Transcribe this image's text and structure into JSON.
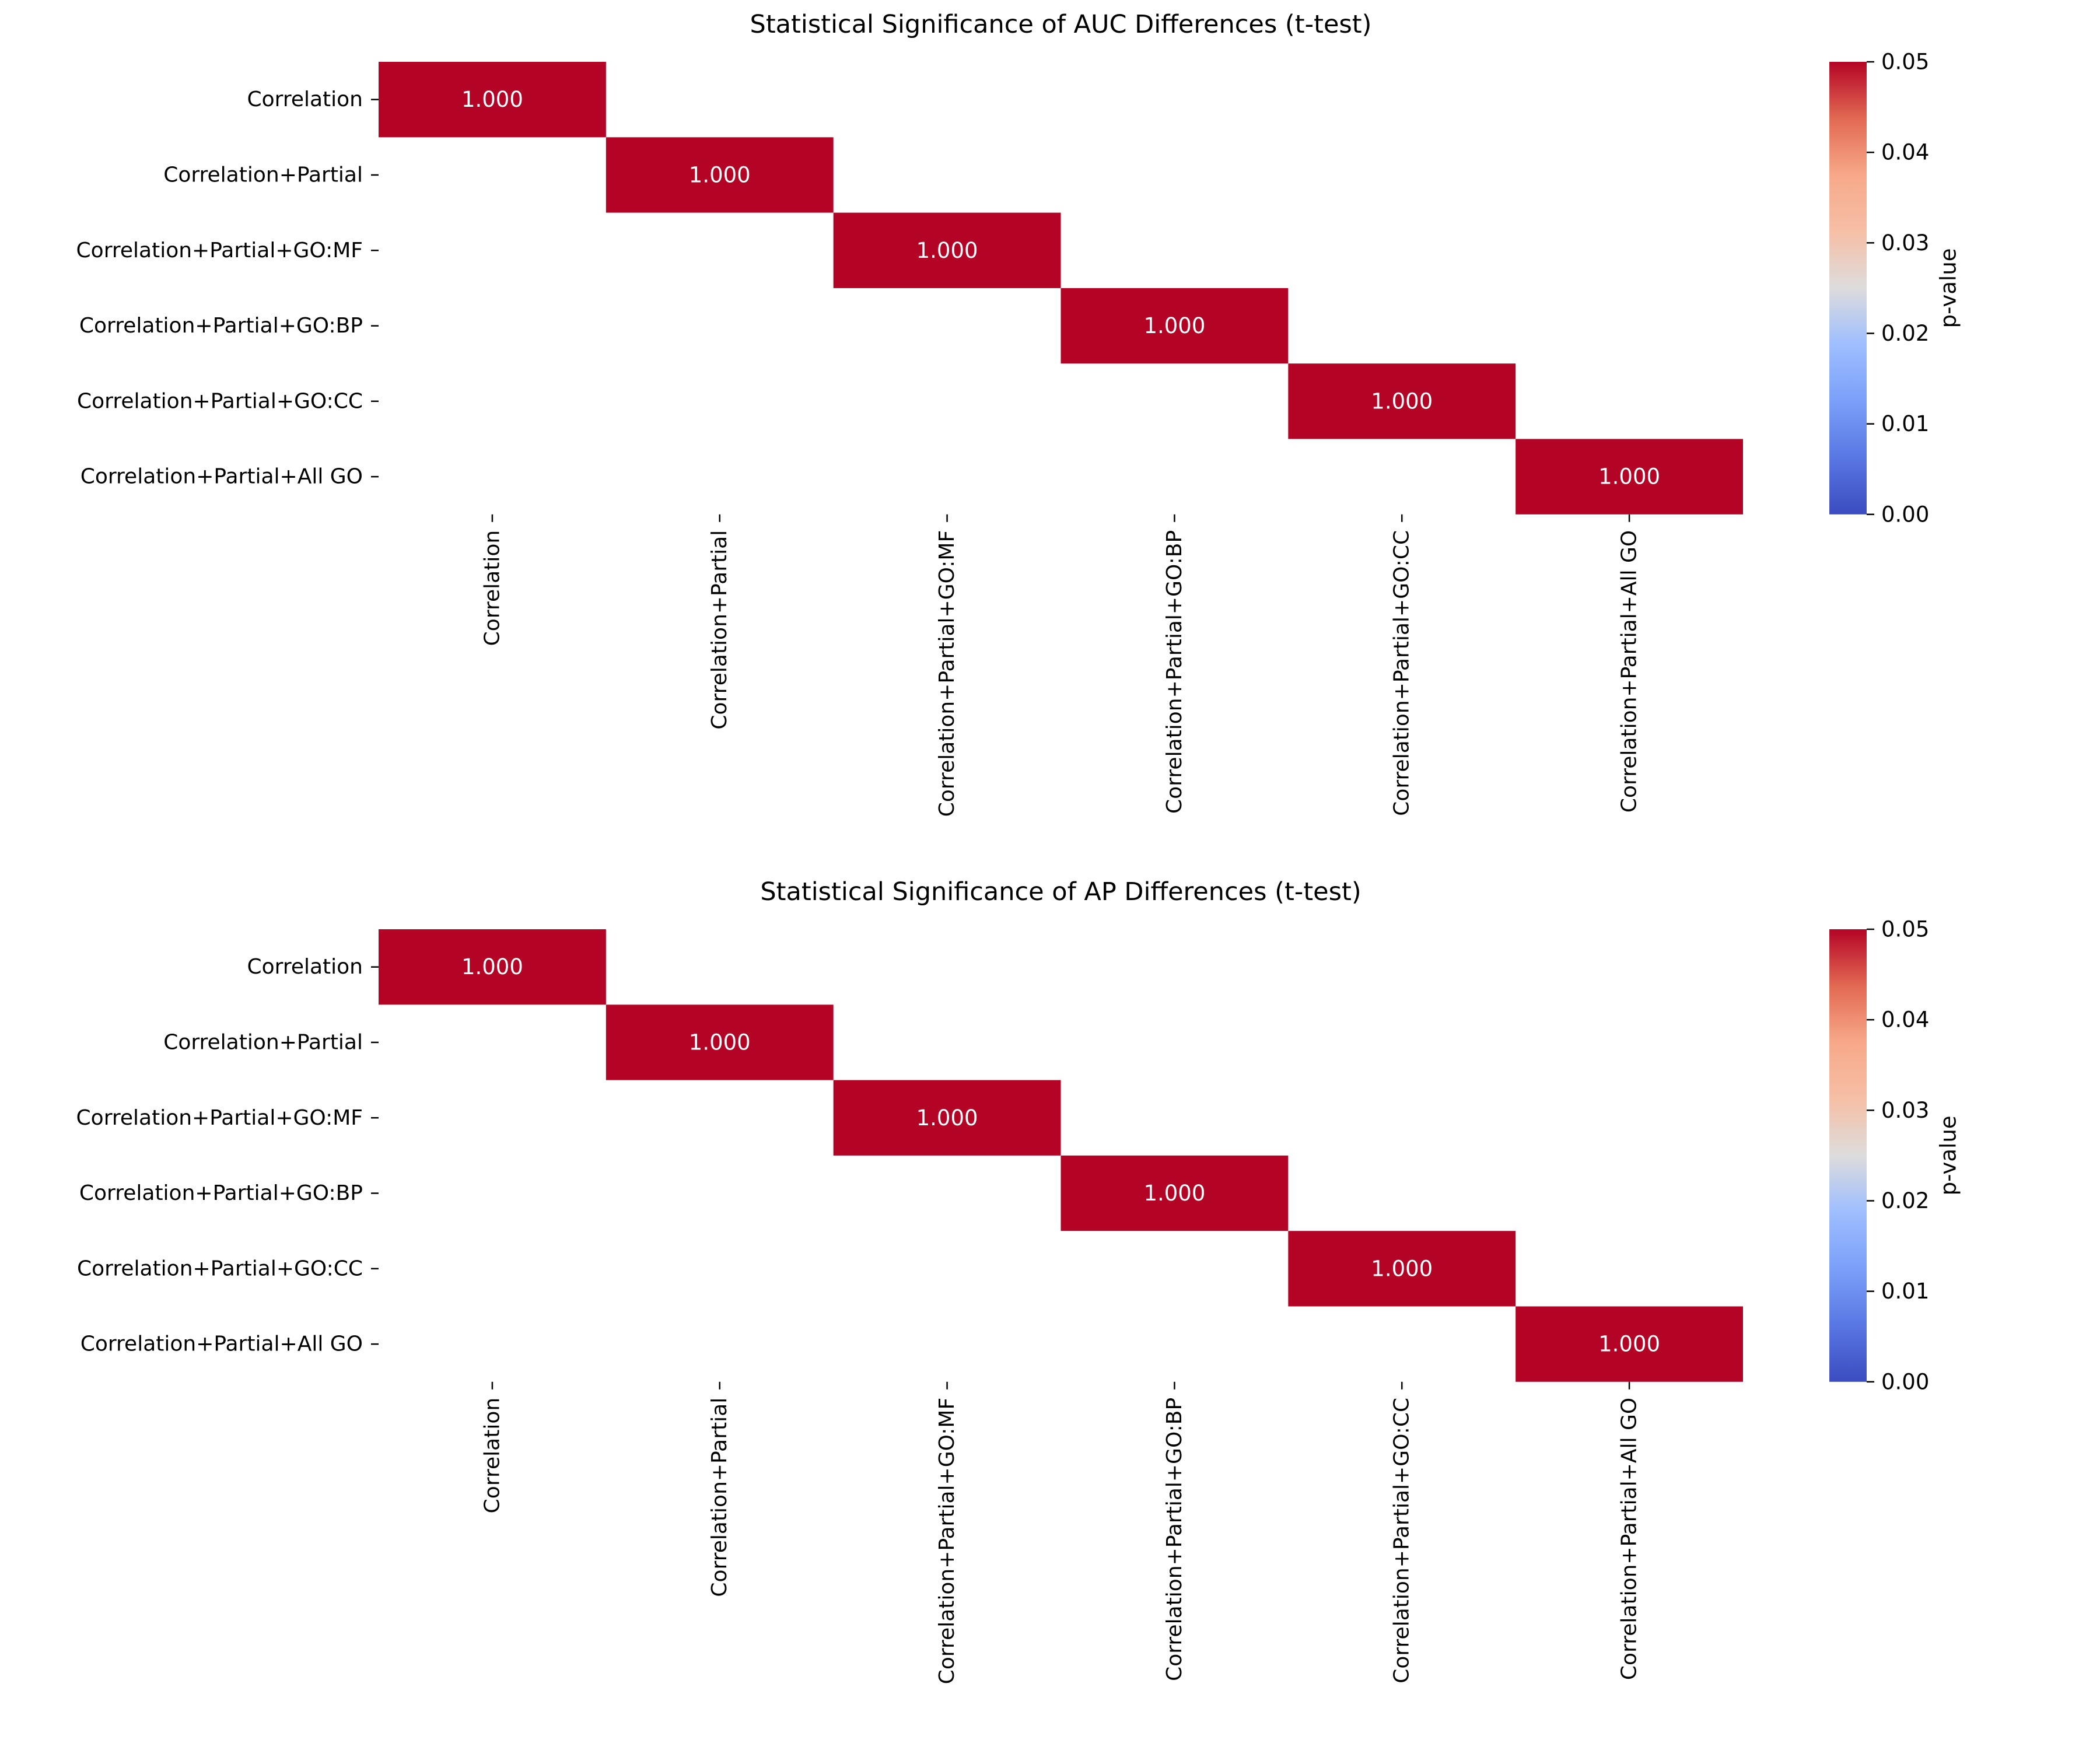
{
  "chart_data": [
    {
      "type": "heatmap",
      "title": "Statistical Significance of AUC Differences (t-test)",
      "row_labels": [
        "Correlation",
        "Correlation+Partial",
        "Correlation+Partial+GO:MF",
        "Correlation+Partial+GO:BP",
        "Correlation+Partial+GO:CC",
        "Correlation+Partial+All GO"
      ],
      "col_labels": [
        "Correlation",
        "Correlation+Partial",
        "Correlation+Partial+GO:MF",
        "Correlation+Partial+GO:BP",
        "Correlation+Partial+GO:CC",
        "Correlation+Partial+All GO"
      ],
      "cells": [
        {
          "row": 0,
          "col": 0,
          "value": 1.0,
          "label": "1.000"
        },
        {
          "row": 1,
          "col": 1,
          "value": 1.0,
          "label": "1.000"
        },
        {
          "row": 2,
          "col": 2,
          "value": 1.0,
          "label": "1.000"
        },
        {
          "row": 3,
          "col": 3,
          "value": 1.0,
          "label": "1.000"
        },
        {
          "row": 4,
          "col": 4,
          "value": 1.0,
          "label": "1.000"
        },
        {
          "row": 5,
          "col": 5,
          "value": 1.0,
          "label": "1.000"
        }
      ],
      "colorbar": {
        "label": "p-value",
        "range": [
          0,
          0.05
        ],
        "ticks": [
          "0.00",
          "0.01",
          "0.02",
          "0.03",
          "0.04",
          "0.05"
        ],
        "colormap": "coolwarm"
      },
      "grid": false
    },
    {
      "type": "heatmap",
      "title": "Statistical Significance of AP Differences (t-test)",
      "row_labels": [
        "Correlation",
        "Correlation+Partial",
        "Correlation+Partial+GO:MF",
        "Correlation+Partial+GO:BP",
        "Correlation+Partial+GO:CC",
        "Correlation+Partial+All GO"
      ],
      "col_labels": [
        "Correlation",
        "Correlation+Partial",
        "Correlation+Partial+GO:MF",
        "Correlation+Partial+GO:BP",
        "Correlation+Partial+GO:CC",
        "Correlation+Partial+All GO"
      ],
      "cells": [
        {
          "row": 0,
          "col": 0,
          "value": 1.0,
          "label": "1.000"
        },
        {
          "row": 1,
          "col": 1,
          "value": 1.0,
          "label": "1.000"
        },
        {
          "row": 2,
          "col": 2,
          "value": 1.0,
          "label": "1.000"
        },
        {
          "row": 3,
          "col": 3,
          "value": 1.0,
          "label": "1.000"
        },
        {
          "row": 4,
          "col": 4,
          "value": 1.0,
          "label": "1.000"
        },
        {
          "row": 5,
          "col": 5,
          "value": 1.0,
          "label": "1.000"
        }
      ],
      "colorbar": {
        "label": "p-value",
        "range": [
          0,
          0.05
        ],
        "ticks": [
          "0.00",
          "0.01",
          "0.02",
          "0.03",
          "0.04",
          "0.05"
        ],
        "colormap": "coolwarm"
      },
      "grid": false
    }
  ],
  "colors": {
    "high": "#b40426",
    "mid": "#dddddd",
    "low": "#3b4cc0",
    "cell_text": "#ffffff"
  }
}
